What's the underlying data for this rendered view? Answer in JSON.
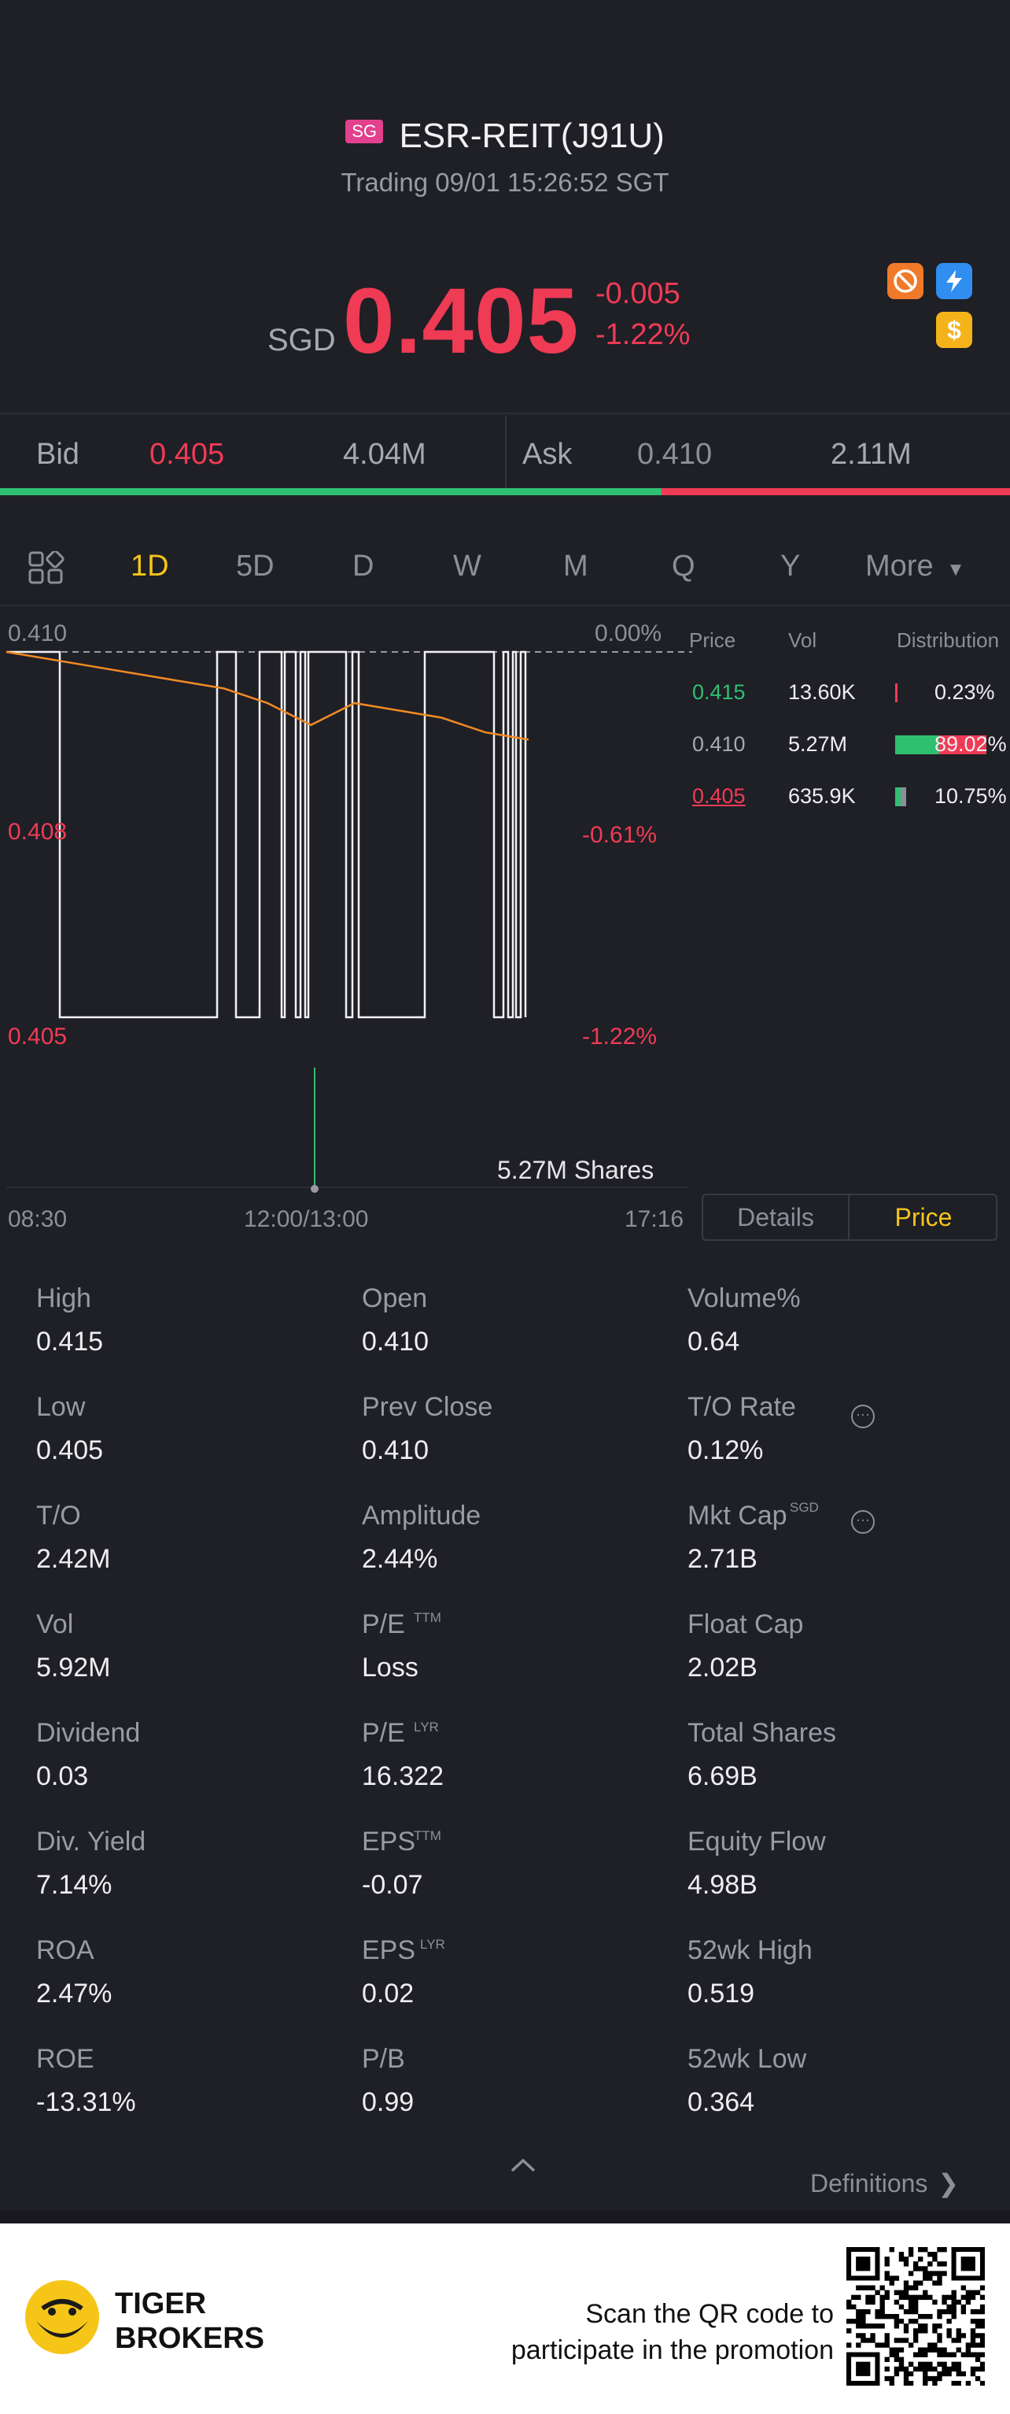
{
  "header": {
    "region_badge": "SG",
    "title": "ESR-REIT(J91U)",
    "subtitle": "Trading 09/01 15:26:52 SGT",
    "currency": "SGD",
    "price": "0.405",
    "change": "-0.005",
    "change_pct": "-1.22%",
    "icons": [
      "no-entry-icon",
      "lightning-icon",
      "dollar-icon"
    ]
  },
  "bidask": {
    "bid_label": "Bid",
    "bid_price": "0.405",
    "bid_size": "4.04M",
    "ask_label": "Ask",
    "ask_price": "0.410",
    "ask_size": "2.11M",
    "bid_ratio": 0.655
  },
  "tabs": [
    "1D",
    "5D",
    "D",
    "W",
    "M",
    "Q",
    "Y",
    "More"
  ],
  "active_tab": "1D",
  "chart": {
    "y_top": "0.410",
    "y_mid": "0.408",
    "y_bot": "0.405",
    "pct_top": "0.00%",
    "pct_mid": "-0.61%",
    "pct_bot": "-1.22%",
    "vol_label": "5.27M Shares",
    "x_start": "08:30",
    "x_mid": "12:00/13:00",
    "x_end": "17:16"
  },
  "chart_data": {
    "type": "line",
    "ylim": [
      0.405,
      0.41
    ],
    "series": [
      {
        "values": [
          0.41,
          0.405,
          0.405,
          0.41,
          0.405,
          0.41,
          0.405,
          0.41,
          0.405,
          0.41,
          0.405,
          0.41,
          0.405,
          0.41,
          0.405,
          0.41,
          0.405,
          0.41,
          0.405,
          0.41,
          0.405,
          0.41,
          0.405
        ]
      },
      {
        "values": [
          0.41,
          0.4099,
          0.4098,
          0.4097,
          0.4096,
          0.4095,
          0.4093,
          0.409,
          0.4093,
          0.4092,
          0.4091,
          0.4089,
          0.4088
        ]
      }
    ]
  },
  "distribution": {
    "headers": [
      "Price",
      "Vol",
      "Distribution"
    ],
    "rows": [
      {
        "price": "0.415",
        "vol": "13.60K",
        "pct": "0.23%",
        "ratio": 0.0023,
        "color": "#2fbf71"
      },
      {
        "price": "0.410",
        "vol": "5.27M",
        "pct": "89.02%",
        "ratio": 0.8902,
        "color": "#8e8e9a"
      },
      {
        "price": "0.405",
        "vol": "635.9K",
        "pct": "10.75%",
        "ratio": 0.1075,
        "color": "#f03b55"
      }
    ]
  },
  "toggle": {
    "details": "Details",
    "price": "Price"
  },
  "stats": [
    [
      {
        "k": "High",
        "v": "0.415"
      },
      {
        "k": "Open",
        "v": "0.410"
      },
      {
        "k": "Volume%",
        "v": "0.64"
      }
    ],
    [
      {
        "k": "Low",
        "v": "0.405"
      },
      {
        "k": "Prev Close",
        "v": "0.410"
      },
      {
        "k": "T/O Rate",
        "v": "0.12%"
      }
    ],
    [
      {
        "k": "T/O",
        "v": "2.42M"
      },
      {
        "k": "Amplitude",
        "v": "2.44%"
      },
      {
        "k": "Mkt Cap",
        "v": "2.71B"
      }
    ],
    [
      {
        "k": "Vol",
        "v": "5.92M"
      },
      {
        "k": "P/E",
        "v": "Loss"
      },
      {
        "k": "Float Cap",
        "v": "2.02B"
      }
    ],
    [
      {
        "k": "Dividend",
        "v": "0.03"
      },
      {
        "k": "P/E",
        "v": "16.322"
      },
      {
        "k": "Total Shares",
        "v": "6.69B"
      }
    ],
    [
      {
        "k": "Div. Yield",
        "v": "7.14%"
      },
      {
        "k": "EPS",
        "v": "-0.07"
      },
      {
        "k": "Equity Flow",
        "v": "4.98B"
      }
    ],
    [
      {
        "k": "ROA",
        "v": "2.47%"
      },
      {
        "k": "EPS",
        "v": "0.02"
      },
      {
        "k": "52wk High",
        "v": "0.519"
      }
    ],
    [
      {
        "k": "ROE",
        "v": "-13.31%"
      },
      {
        "k": "P/B",
        "v": "0.99"
      },
      {
        "k": "52wk Low",
        "v": "0.364"
      }
    ]
  ],
  "sups": {
    "mktcap": "SGD",
    "pe_ttm": "TTM",
    "pe_lyr": "LYR",
    "eps_ttm": "TTM",
    "eps_lyr": "LYR"
  },
  "definitions": "Definitions",
  "footer": {
    "brand_line1": "TIGER",
    "brand_line2": "BROKERS",
    "promo_line1": "Scan the QR code to",
    "promo_line2": "participate in the promotion"
  }
}
